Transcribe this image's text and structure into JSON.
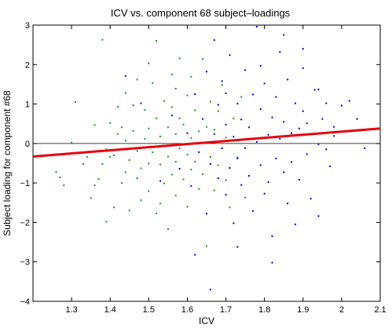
{
  "chart_data": {
    "type": "scatter",
    "title": "ICV vs. component 68 subject–loadings",
    "xlabel": "ICV",
    "ylabel": "Subject loading for component #68",
    "xlim": [
      1.2,
      2.1
    ],
    "ylim": [
      -4,
      3
    ],
    "xticks": [
      "1.3",
      "1.4",
      "1.5",
      "1.6",
      "1.7",
      "1.8",
      "1.9",
      "2",
      "2.1"
    ],
    "yticks": [
      "3",
      "2",
      "1",
      "0",
      "−1",
      "−2",
      "−3",
      "−4"
    ],
    "zero_line": 0,
    "fit_line": {
      "x": [
        1.2,
        2.1
      ],
      "y": [
        -0.33,
        0.38
      ],
      "color": "#e8000b"
    },
    "series": [
      {
        "color": "#2a8a2a",
        "points": [
          [
            1.26,
            -0.72
          ],
          [
            1.27,
            -0.86
          ],
          [
            1.28,
            -1.06
          ],
          [
            1.3,
            0.02
          ],
          [
            1.31,
            1.05
          ],
          [
            1.33,
            -0.52
          ],
          [
            1.34,
            -0.34
          ],
          [
            1.35,
            -1.38
          ],
          [
            1.36,
            -1.06
          ],
          [
            1.37,
            -0.9
          ],
          [
            1.38,
            -0.52
          ],
          [
            1.38,
            2.63
          ],
          [
            1.39,
            -1.98
          ],
          [
            1.39,
            -0.15
          ],
          [
            1.4,
            -0.34
          ],
          [
            1.4,
            0.52
          ],
          [
            1.41,
            -1.62
          ],
          [
            1.41,
            -0.3
          ],
          [
            1.42,
            0.24
          ],
          [
            1.42,
            0.93
          ],
          [
            1.43,
            -1.0
          ],
          [
            1.43,
            0.41
          ],
          [
            1.44,
            -0.73
          ],
          [
            1.44,
            1.28
          ],
          [
            1.45,
            -1.7
          ],
          [
            1.45,
            -0.42
          ],
          [
            1.46,
            0.32
          ],
          [
            1.46,
            0.97
          ],
          [
            1.47,
            -0.19
          ],
          [
            1.47,
            1.62
          ],
          [
            1.48,
            -1.44
          ],
          [
            1.48,
            -0.63
          ],
          [
            1.49,
            0.12
          ],
          [
            1.49,
            0.85
          ],
          [
            1.5,
            -1.21
          ],
          [
            1.5,
            -0.51
          ],
          [
            1.5,
            0.38
          ],
          [
            1.51,
            1.53
          ],
          [
            1.51,
            -0.22
          ],
          [
            1.52,
            -1.77
          ],
          [
            1.52,
            0.64
          ],
          [
            1.52,
            2.6
          ],
          [
            1.53,
            -0.53
          ],
          [
            1.53,
            0.18
          ],
          [
            1.54,
            -1.01
          ],
          [
            1.54,
            1.08
          ],
          [
            1.55,
            -0.33
          ],
          [
            1.55,
            0.41
          ],
          [
            1.55,
            -2.17
          ],
          [
            1.56,
            -0.79
          ],
          [
            1.56,
            0.92
          ],
          [
            1.56,
            1.75
          ],
          [
            1.57,
            -0.46
          ],
          [
            1.57,
            0.24
          ],
          [
            1.57,
            -1.32
          ],
          [
            1.58,
            0.64
          ],
          [
            1.58,
            -0.12
          ],
          [
            1.58,
            2.16
          ],
          [
            1.59,
            -0.91
          ],
          [
            1.59,
            0.48
          ],
          [
            1.6,
            -0.28
          ],
          [
            1.6,
            1.22
          ],
          [
            1.6,
            -1.6
          ],
          [
            1.61,
            0.14
          ],
          [
            1.61,
            -0.66
          ],
          [
            1.61,
            1.69
          ],
          [
            1.62,
            -0.46
          ],
          [
            1.62,
            0.84
          ],
          [
            1.63,
            -1.15
          ],
          [
            1.63,
            0.31
          ],
          [
            1.64,
            -0.78
          ],
          [
            1.64,
            2.14
          ],
          [
            1.65,
            -2.6
          ],
          [
            1.65,
            0.42
          ],
          [
            1.66,
            -0.34
          ],
          [
            1.66,
            1.06
          ],
          [
            1.67,
            -1.19
          ],
          [
            1.67,
            0.35
          ],
          [
            1.68,
            0.82
          ],
          [
            1.68,
            -0.55
          ],
          [
            1.69,
            1.48
          ],
          [
            1.7,
            -0.93
          ],
          [
            1.7,
            0.15
          ],
          [
            1.71,
            -1.62
          ],
          [
            1.72,
            0.63
          ],
          [
            1.73,
            -0.35
          ],
          [
            1.74,
            1.18
          ],
          [
            1.75,
            -1.37
          ],
          [
            1.47,
            -0.88
          ],
          [
            1.53,
            -1.52
          ],
          [
            1.44,
            0.07
          ],
          [
            1.57,
            1.39
          ],
          [
            1.36,
            0.47
          ],
          [
            1.5,
            2.03
          ]
        ]
      },
      {
        "color": "#0000d0",
        "points": [
          [
            1.44,
            1.71
          ],
          [
            1.48,
            1.02
          ],
          [
            1.53,
            -0.95
          ],
          [
            1.56,
            0.71
          ],
          [
            1.58,
            -0.64
          ],
          [
            1.6,
            0.26
          ],
          [
            1.61,
            -1.08
          ],
          [
            1.62,
            1.25
          ],
          [
            1.63,
            -0.22
          ],
          [
            1.64,
            0.62
          ],
          [
            1.65,
            -1.78
          ],
          [
            1.65,
            1.82
          ],
          [
            1.66,
            -0.52
          ],
          [
            1.67,
            0.24
          ],
          [
            1.67,
            2.62
          ],
          [
            1.68,
            -0.88
          ],
          [
            1.68,
            0.98
          ],
          [
            1.69,
            -0.12
          ],
          [
            1.69,
            1.58
          ],
          [
            1.7,
            -1.3
          ],
          [
            1.7,
            0.48
          ],
          [
            1.71,
            -0.62
          ],
          [
            1.71,
            2.24
          ],
          [
            1.72,
            0.17
          ],
          [
            1.72,
            -2.02
          ],
          [
            1.73,
            -0.38
          ],
          [
            1.73,
            1.01
          ],
          [
            1.74,
            0.61
          ],
          [
            1.74,
            -1.05
          ],
          [
            1.75,
            1.86
          ],
          [
            1.75,
            -0.12
          ],
          [
            1.76,
            0.41
          ],
          [
            1.76,
            -0.82
          ],
          [
            1.77,
            1.24
          ],
          [
            1.77,
            -1.71
          ],
          [
            1.78,
            0.04
          ],
          [
            1.78,
            2.96
          ],
          [
            1.79,
            -0.55
          ],
          [
            1.79,
            0.87
          ],
          [
            1.8,
            -1.27
          ],
          [
            1.8,
            1.52
          ],
          [
            1.81,
            0.22
          ],
          [
            1.81,
            -0.98
          ],
          [
            1.82,
            0.66
          ],
          [
            1.82,
            -2.35
          ],
          [
            1.83,
            -0.38
          ],
          [
            1.83,
            1.18
          ],
          [
            1.84,
            0.12
          ],
          [
            1.84,
            2.32
          ],
          [
            1.85,
            -0.73
          ],
          [
            1.85,
            0.55
          ],
          [
            1.86,
            -1.52
          ],
          [
            1.86,
            1.62
          ],
          [
            1.87,
            0.26
          ],
          [
            1.87,
            -0.47
          ],
          [
            1.88,
            1.02
          ],
          [
            1.88,
            -2.05
          ],
          [
            1.89,
            0.38
          ],
          [
            1.89,
            -0.92
          ],
          [
            1.9,
            0.82
          ],
          [
            1.9,
            1.91
          ],
          [
            1.91,
            -0.27
          ],
          [
            1.91,
            0.51
          ],
          [
            1.92,
            -1.4
          ],
          [
            1.93,
            1.36
          ],
          [
            1.94,
            -0.02
          ],
          [
            1.94,
            -1.84
          ],
          [
            1.95,
            0.62
          ],
          [
            1.96,
            1.02
          ],
          [
            1.97,
            -0.58
          ],
          [
            1.98,
            0.19
          ],
          [
            2.0,
            0.96
          ],
          [
            2.02,
            1.08
          ],
          [
            2.04,
            0.62
          ],
          [
            2.06,
            -0.12
          ],
          [
            1.66,
            -3.7
          ],
          [
            1.62,
            -2.82
          ],
          [
            1.73,
            -2.62
          ],
          [
            1.85,
            2.75
          ],
          [
            1.82,
            -3.02
          ],
          [
            1.9,
            2.4
          ],
          [
            1.94,
            1.37
          ],
          [
            1.96,
            -0.15
          ],
          [
            1.98,
            0.42
          ],
          [
            1.79,
            1.97
          ],
          [
            1.7,
            1.27
          ]
        ]
      }
    ]
  }
}
